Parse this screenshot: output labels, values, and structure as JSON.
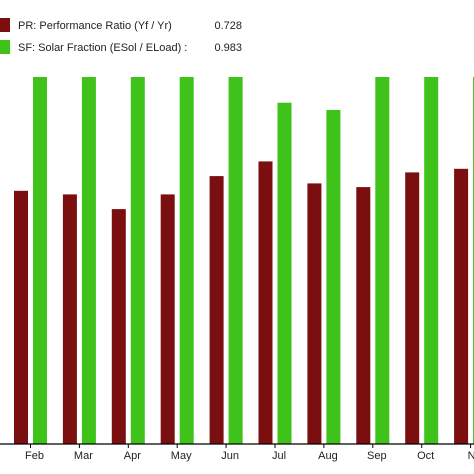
{
  "chart_data": {
    "type": "bar",
    "categories": [
      "Feb",
      "Mar",
      "Apr",
      "May",
      "Jun",
      "Jul",
      "Aug",
      "Sep",
      "Oct",
      "No"
    ],
    "series": [
      {
        "name": "PR: Performance Ratio (Yf / Yr)",
        "summary_value": "0.728",
        "color": "#7b0f0f",
        "values": [
          0.69,
          0.68,
          0.64,
          0.68,
          0.73,
          0.77,
          0.71,
          0.7,
          0.74,
          0.75
        ]
      },
      {
        "name": "SF: Solar Fraction (ESol / ELoad) :",
        "summary_value": "0.983",
        "color": "#3fc21a",
        "values": [
          1.0,
          1.0,
          1.0,
          1.0,
          1.0,
          0.93,
          0.91,
          1.0,
          1.0,
          1.0
        ]
      }
    ],
    "ylim": [
      0,
      1.0
    ],
    "grid": false,
    "legend_position": "top-left"
  }
}
